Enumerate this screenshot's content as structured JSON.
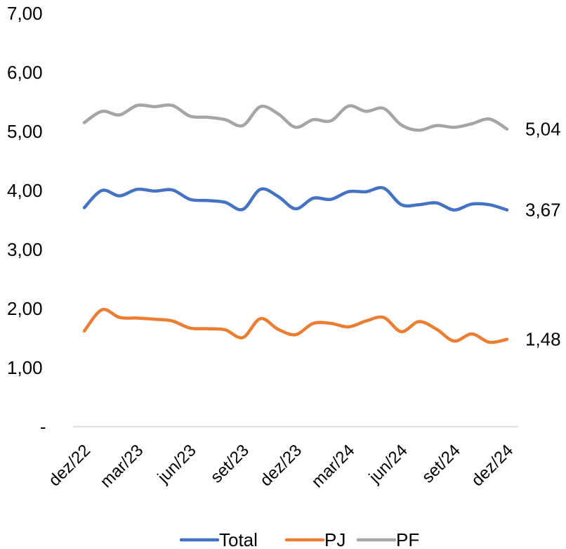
{
  "chart_data": {
    "type": "line",
    "title": "",
    "xlabel": "",
    "ylabel": "",
    "ylim": [
      0,
      7
    ],
    "yticks": [
      {
        "value": 0,
        "label": "-"
      },
      {
        "value": 1,
        "label": "1,00"
      },
      {
        "value": 2,
        "label": "2,00"
      },
      {
        "value": 3,
        "label": "3,00"
      },
      {
        "value": 4,
        "label": "4,00"
      },
      {
        "value": 5,
        "label": "5,00"
      },
      {
        "value": 6,
        "label": "6,00"
      },
      {
        "value": 7,
        "label": "7,00"
      }
    ],
    "x": [
      "dez/22",
      "jan/23",
      "fev/23",
      "mar/23",
      "abr/23",
      "mai/23",
      "jun/23",
      "jul/23",
      "ago/23",
      "set/23",
      "out/23",
      "nov/23",
      "dez/23",
      "jan/24",
      "fev/24",
      "mar/24",
      "abr/24",
      "mai/24",
      "jun/24",
      "jul/24",
      "ago/24",
      "set/24",
      "out/24",
      "nov/24",
      "dez/24"
    ],
    "xtick_labels": [
      "dez/22",
      "mar/23",
      "jun/23",
      "set/23",
      "dez/23",
      "mar/24",
      "jun/24",
      "set/24",
      "dez/24"
    ],
    "grid": false,
    "legend_position": "bottom",
    "series": [
      {
        "name": "Total",
        "color": "#4472C4",
        "values": [
          3.71,
          4.0,
          3.91,
          4.02,
          3.99,
          4.01,
          3.85,
          3.83,
          3.8,
          3.68,
          4.02,
          3.9,
          3.69,
          3.87,
          3.85,
          3.98,
          3.98,
          4.04,
          3.76,
          3.76,
          3.79,
          3.67,
          3.77,
          3.76,
          3.67
        ],
        "end_label": "3,67"
      },
      {
        "name": "PJ",
        "color": "#ED7D31",
        "values": [
          1.62,
          1.98,
          1.85,
          1.84,
          1.82,
          1.79,
          1.67,
          1.66,
          1.64,
          1.51,
          1.83,
          1.65,
          1.56,
          1.75,
          1.75,
          1.69,
          1.79,
          1.85,
          1.61,
          1.78,
          1.65,
          1.45,
          1.57,
          1.43,
          1.48
        ],
        "end_label": "1,48"
      },
      {
        "name": "PF",
        "color": "#A5A5A5",
        "values": [
          5.15,
          5.34,
          5.28,
          5.44,
          5.42,
          5.44,
          5.26,
          5.24,
          5.2,
          5.1,
          5.42,
          5.3,
          5.07,
          5.2,
          5.18,
          5.43,
          5.34,
          5.39,
          5.11,
          5.02,
          5.1,
          5.07,
          5.13,
          5.21,
          5.04
        ],
        "end_label": "5,04"
      }
    ]
  }
}
